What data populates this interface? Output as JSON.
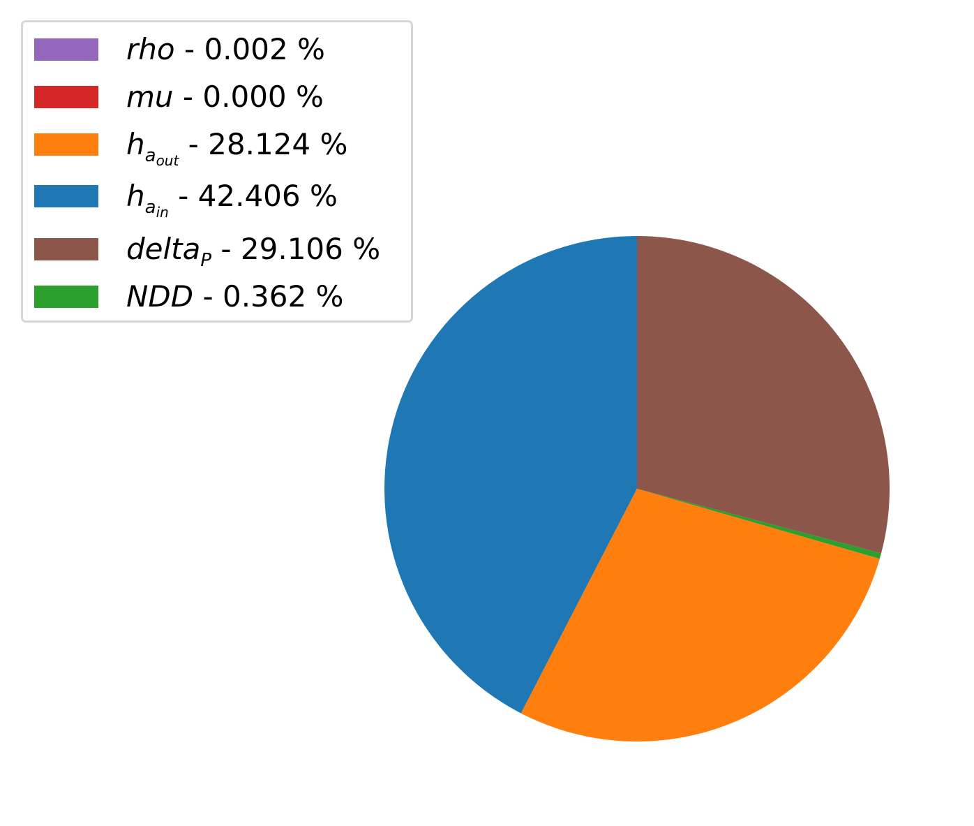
{
  "chart_data": {
    "type": "pie",
    "slices": [
      {
        "label": "rho",
        "value": 0.002,
        "color": "#9467bd"
      },
      {
        "label": "mu",
        "value": 0.0,
        "color": "#d62728"
      },
      {
        "label": "h_a_out",
        "value": 28.124,
        "color": "#ff7f0e"
      },
      {
        "label": "h_a_in",
        "value": 42.406,
        "color": "#1f77b4"
      },
      {
        "label": "delta_P",
        "value": 29.106,
        "color": "#8c564b"
      },
      {
        "label": "NDD",
        "value": 0.362,
        "color": "#2ca02c"
      }
    ],
    "legend_entries": [
      {
        "symbol": "rho",
        "suffix": " - 0.002 %"
      },
      {
        "symbol": "mu",
        "suffix": " - 0.000 %"
      },
      {
        "symbol": "h",
        "sub": "a",
        "subsub": "out",
        "suffix": " - 28.124 %"
      },
      {
        "symbol": "h",
        "sub": "a",
        "subsub": "in",
        "suffix": " - 42.406 %"
      },
      {
        "symbol": "delta",
        "sub": "P",
        "suffix": " - 29.106 %"
      },
      {
        "symbol": "NDD",
        "suffix": " - 0.362 %"
      }
    ],
    "legend_position": "upper-left",
    "title": ""
  }
}
